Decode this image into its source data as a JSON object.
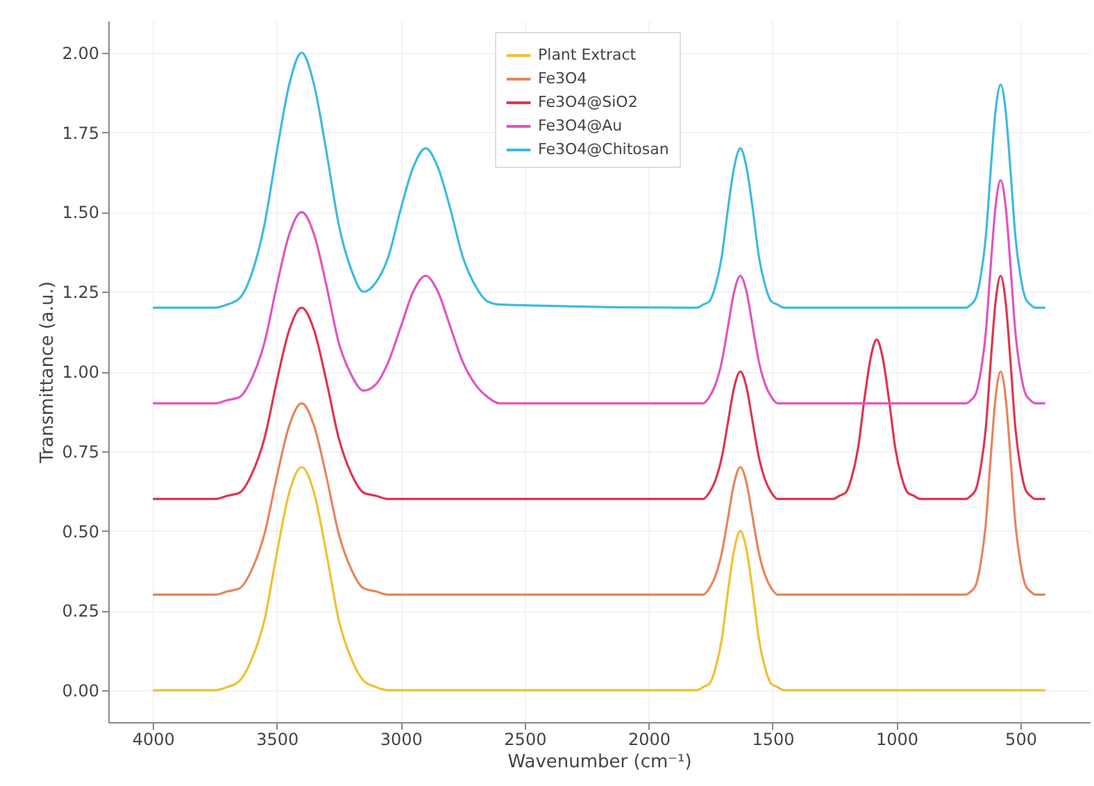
{
  "chart_data": {
    "type": "line",
    "xlabel": "Wavenumber (cm⁻¹)",
    "ylabel": "Transmittance (a.u.)",
    "x": [
      4000,
      3750,
      3700,
      3650,
      3600,
      3550,
      3500,
      3450,
      3400,
      3350,
      3300,
      3250,
      3200,
      3150,
      3100,
      3050,
      3000,
      2950,
      2900,
      2850,
      2800,
      2750,
      2700,
      2650,
      2600,
      1850,
      1805,
      1780,
      1755,
      1730,
      1705,
      1680,
      1655,
      1630,
      1605,
      1580,
      1555,
      1530,
      1505,
      1480,
      1455,
      1300,
      1255,
      1230,
      1205,
      1180,
      1155,
      1130,
      1105,
      1080,
      1055,
      1030,
      1005,
      980,
      955,
      930,
      905,
      800,
      720,
      700,
      680,
      660,
      640,
      620,
      600,
      580,
      560,
      540,
      520,
      500,
      480,
      460,
      440,
      400
    ],
    "series": [
      {
        "name": "Plant Extract",
        "color": "#f0c030",
        "values": [
          0,
          0,
          0.01,
          0.03,
          0.1,
          0.22,
          0.43,
          0.62,
          0.7,
          0.62,
          0.43,
          0.22,
          0.1,
          0.03,
          0.01,
          0,
          0,
          0,
          0,
          0,
          0,
          0,
          0,
          0,
          0,
          0,
          0,
          0.01,
          0.02,
          0.07,
          0.16,
          0.31,
          0.44,
          0.5,
          0.44,
          0.31,
          0.16,
          0.07,
          0.02,
          0.01,
          0,
          0,
          0,
          0,
          0,
          0,
          0,
          0,
          0,
          0,
          0,
          0,
          0,
          0,
          0,
          0,
          0,
          0,
          0,
          0,
          0,
          0,
          0,
          0,
          0,
          0,
          0,
          0,
          0,
          0,
          0,
          0,
          0,
          0
        ]
      },
      {
        "name": "Fe3O4",
        "color": "#e8845a",
        "values": [
          0.3,
          0.3,
          0.31,
          0.32,
          0.38,
          0.49,
          0.67,
          0.83,
          0.9,
          0.83,
          0.67,
          0.49,
          0.38,
          0.32,
          0.31,
          0.3,
          0.3,
          0.3,
          0.3,
          0.3,
          0.3,
          0.3,
          0.3,
          0.3,
          0.3,
          0.3,
          0.3,
          0.3,
          0.32,
          0.36,
          0.43,
          0.54,
          0.65,
          0.7,
          0.65,
          0.54,
          0.43,
          0.36,
          0.32,
          0.3,
          0.3,
          0.3,
          0.3,
          0.3,
          0.3,
          0.3,
          0.3,
          0.3,
          0.3,
          0.3,
          0.3,
          0.3,
          0.3,
          0.3,
          0.3,
          0.3,
          0.3,
          0.3,
          0.3,
          0.31,
          0.33,
          0.4,
          0.52,
          0.73,
          0.92,
          1.0,
          0.92,
          0.73,
          0.52,
          0.4,
          0.33,
          0.31,
          0.3,
          0.3
        ]
      },
      {
        "name": "Fe3O4@SiO2",
        "color": "#e0344f",
        "values": [
          0.6,
          0.6,
          0.61,
          0.62,
          0.68,
          0.79,
          0.97,
          1.13,
          1.2,
          1.13,
          0.97,
          0.79,
          0.68,
          0.62,
          0.61,
          0.6,
          0.6,
          0.6,
          0.6,
          0.6,
          0.6,
          0.6,
          0.6,
          0.6,
          0.6,
          0.6,
          0.6,
          0.6,
          0.62,
          0.66,
          0.73,
          0.84,
          0.95,
          1.0,
          0.95,
          0.84,
          0.73,
          0.66,
          0.62,
          0.6,
          0.6,
          0.6,
          0.6,
          0.61,
          0.62,
          0.67,
          0.76,
          0.91,
          1.04,
          1.1,
          1.04,
          0.91,
          0.76,
          0.67,
          0.62,
          0.61,
          0.6,
          0.6,
          0.6,
          0.61,
          0.63,
          0.7,
          0.82,
          1.03,
          1.22,
          1.3,
          1.22,
          1.03,
          0.82,
          0.7,
          0.63,
          0.61,
          0.6,
          0.6
        ]
      },
      {
        "name": "Fe3O4@Au",
        "color": "#e055c0",
        "values": [
          0.9,
          0.9,
          0.91,
          0.92,
          0.98,
          1.09,
          1.27,
          1.43,
          1.5,
          1.43,
          1.27,
          1.09,
          0.99,
          0.94,
          0.96,
          1.03,
          1.14,
          1.25,
          1.3,
          1.25,
          1.14,
          1.03,
          0.96,
          0.92,
          0.9,
          0.9,
          0.9,
          0.9,
          0.92,
          0.96,
          1.03,
          1.14,
          1.25,
          1.3,
          1.25,
          1.14,
          1.03,
          0.96,
          0.92,
          0.9,
          0.9,
          0.9,
          0.9,
          0.9,
          0.9,
          0.9,
          0.9,
          0.9,
          0.9,
          0.9,
          0.9,
          0.9,
          0.9,
          0.9,
          0.9,
          0.9,
          0.9,
          0.9,
          0.9,
          0.91,
          0.93,
          1.0,
          1.12,
          1.33,
          1.52,
          1.6,
          1.52,
          1.33,
          1.12,
          1.0,
          0.93,
          0.91,
          0.9,
          0.9
        ]
      },
      {
        "name": "Fe3O4@Chitosan",
        "color": "#3cbbe0",
        "values": [
          1.2,
          1.2,
          1.21,
          1.23,
          1.31,
          1.46,
          1.69,
          1.9,
          2.0,
          1.9,
          1.69,
          1.46,
          1.32,
          1.25,
          1.28,
          1.36,
          1.51,
          1.64,
          1.7,
          1.64,
          1.51,
          1.36,
          1.27,
          1.22,
          1.21,
          1.2,
          1.2,
          1.21,
          1.22,
          1.27,
          1.36,
          1.51,
          1.64,
          1.7,
          1.64,
          1.51,
          1.36,
          1.27,
          1.22,
          1.21,
          1.2,
          1.2,
          1.2,
          1.2,
          1.2,
          1.2,
          1.2,
          1.2,
          1.2,
          1.2,
          1.2,
          1.2,
          1.2,
          1.2,
          1.2,
          1.2,
          1.2,
          1.2,
          1.2,
          1.21,
          1.23,
          1.3,
          1.42,
          1.63,
          1.82,
          1.9,
          1.82,
          1.63,
          1.42,
          1.3,
          1.23,
          1.21,
          1.2,
          1.2
        ]
      }
    ],
    "xlim": [
      4180,
      220
    ],
    "xticks": [
      4000,
      3500,
      3000,
      2500,
      2000,
      1500,
      1000,
      500
    ],
    "ylim": [
      -0.1,
      2.1
    ],
    "yticks": [
      {
        "value": 0,
        "label": "0.00"
      },
      {
        "value": 0.25,
        "label": "0.25"
      },
      {
        "value": 0.5,
        "label": "0.50"
      },
      {
        "value": 0.75,
        "label": "0.75"
      },
      {
        "value": 1,
        "label": "1.00"
      },
      {
        "value": 1.25,
        "label": "1.25"
      },
      {
        "value": 1.5,
        "label": "1.50"
      },
      {
        "value": 1.75,
        "label": "1.75"
      },
      {
        "value": 2,
        "label": "2.00"
      }
    ],
    "grid": true,
    "legend": "top",
    "marker": "none",
    "line_style": "solid"
  }
}
